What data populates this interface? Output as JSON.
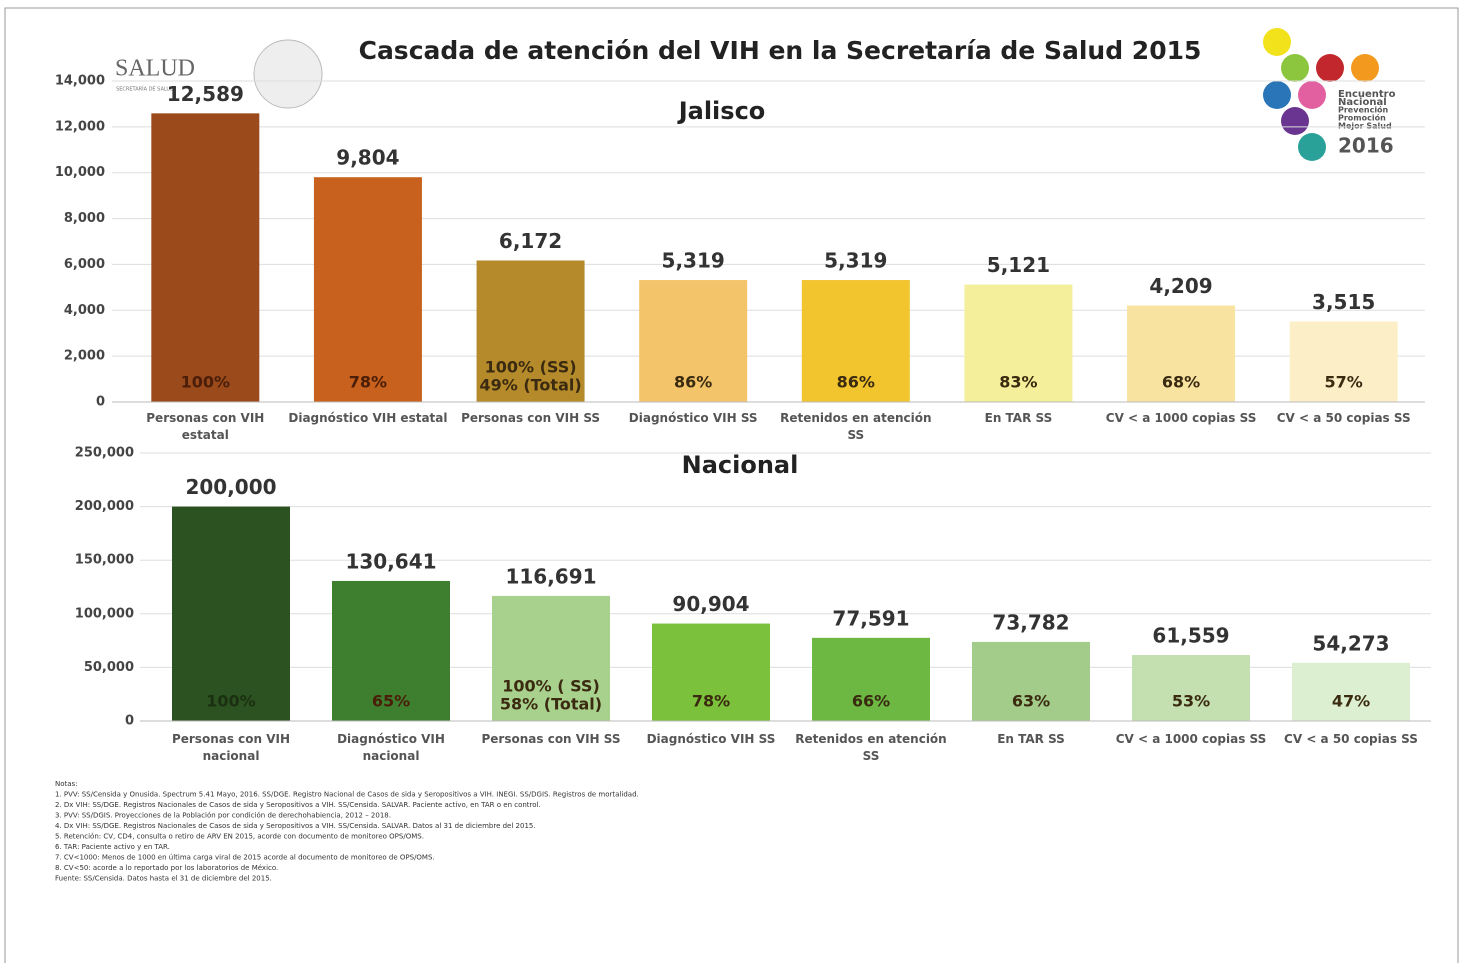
{
  "header": {
    "title": "Cascada de atención del VIH en la Secretaría de Salud 2015",
    "logo_left": "SALUD",
    "logo_left_sub": "SECRETARÍA DE SALUD",
    "logo_right": [
      "Encuentro",
      "Nacional",
      "Prevención",
      "Promoción",
      "Mejor Salud",
      "2016"
    ]
  },
  "chart_data": [
    {
      "type": "bar",
      "title": "Jalisco",
      "categories": [
        "Personas con VIH estatal",
        "Diagnóstico VIH estatal",
        "Personas con VIH SS",
        "Diagnóstico VIH SS",
        "Retenidos en atención SS",
        "En TAR SS",
        "CV < a 1000 copias SS",
        "CV < a 50 copias SS"
      ],
      "values": [
        12589,
        9804,
        6172,
        5319,
        5319,
        5121,
        4209,
        3515
      ],
      "value_labels": [
        "12,589",
        "9,804",
        "6,172",
        "5,319",
        "5,319",
        "5,121",
        "4,209",
        "3,515"
      ],
      "bar_notes": [
        "100%",
        "78%",
        [
          "100% (SS)",
          "49% (Total)"
        ],
        "86%",
        "86%",
        "83%",
        "68%",
        "57%"
      ],
      "colors": [
        "#9b4a1c",
        "#c8601e",
        "#b58a2b",
        "#f3c46a",
        "#f2c42e",
        "#f4ef9a",
        "#f9e3a1",
        "#fcefc8"
      ],
      "ylim": [
        0,
        14000
      ],
      "yticks": [
        0,
        {
          "value": 2000,
          "label": "2,000"
        },
        {
          "value": 4000,
          "label": "4,000"
        },
        {
          "value": 6000,
          "label": "6,000"
        },
        {
          "value": 8000,
          "label": "8,000"
        },
        {
          "value": 10000,
          "label": "10,000"
        },
        {
          "value": 12000,
          "label": "12,000"
        },
        {
          "value": 14000,
          "label": "14,000"
        }
      ],
      "grid": true
    },
    {
      "type": "bar",
      "title": "Nacional",
      "categories": [
        "Personas con VIH nacional",
        "Diagnóstico VIH nacional",
        "Personas con VIH SS",
        "Diagnóstico VIH SS",
        "Retenidos en atención SS",
        "En TAR SS",
        "CV < a 1000 copias SS",
        "CV < a 50 copias SS"
      ],
      "values": [
        200000,
        130641,
        116691,
        90904,
        77591,
        73782,
        61559,
        54273
      ],
      "value_labels": [
        "200,000",
        "130,641",
        "116,691",
        "90,904",
        "77,591",
        "73,782",
        "61,559",
        "54,273"
      ],
      "bar_notes": [
        "100%",
        "65%",
        [
          "100% ( SS)",
          "58% (Total)"
        ],
        "78%",
        "66%",
        "63%",
        "53%",
        "47%"
      ],
      "colors": [
        "#2d5222",
        "#3e7f2f",
        "#a9d18e",
        "#7cc13c",
        "#6cb843",
        "#a3cc8a",
        "#c4e0b0",
        "#dcefd0"
      ],
      "ylim": [
        0,
        250000
      ],
      "yticks": [
        0,
        {
          "value": 50000,
          "label": "50,000"
        },
        {
          "value": 100000,
          "label": "100,000"
        },
        {
          "value": 150000,
          "label": "150,000"
        },
        {
          "value": 200000,
          "label": "200,000"
        },
        {
          "value": 250000,
          "label": "250,000"
        }
      ],
      "grid": true
    }
  ],
  "notes": [
    "Notas:",
    "1.  PVV: SS/Censida y Onusida. Spectrum 5.41 Mayo, 2016. SS/DGE. Registro Nacional de Casos de sida y Seropositivos a VIH. INEGI. SS/DGIS. Registros de mortalidad.",
    "2.  Dx VIH: SS/DGE. Registros Nacionales de Casos de sida y Seropositivos a VIH. SS/Censida. SALVAR. Paciente activo, en TAR o en control.",
    "3.  PVV: SS/DGIS. Proyecciones de la Población por condición de derechohabiencia, 2012 – 2018.",
    "4.  Dx VIH: SS/DGE. Registros Nacionales de Casos de sida y Seropositivos a VIH. SS/Censida. SALVAR. Datos al 31 de diciembre del 2015.",
    "5.  Retención: CV, CD4, consulta o retiro de ARV EN 2015, acorde con documento de monitoreo OPS/OMS.",
    "6.  TAR: Paciente activo y en TAR.",
    "7.  CV<1000: Menos de 1000 en última carga viral de 2015 acorde al documento de monitoreo de OPS/OMS.",
    "8.  CV<50: acorde a lo reportado por los laboratorios de México.",
    "Fuente: SS/Censida. Datos hasta el 31 de diciembre del 2015."
  ]
}
